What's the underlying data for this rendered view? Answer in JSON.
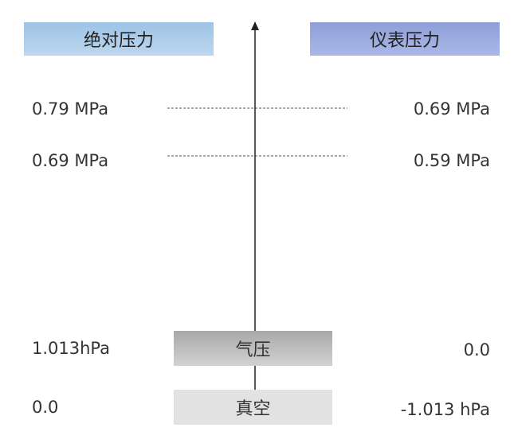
{
  "headers": {
    "absolute": "绝对压力",
    "gauge": "仪表压力"
  },
  "rows": [
    {
      "absolute": "0.79 MPa",
      "gauge": "0.69 MPa"
    },
    {
      "absolute": "0.69 MPa",
      "gauge": "0.59 MPa"
    },
    {
      "absolute": "1.013hPa",
      "gauge": "0.0"
    },
    {
      "absolute": "0.0",
      "gauge": "-1.013 hPa"
    }
  ],
  "boxes": {
    "atmospheric": "气压",
    "vacuum": "真空"
  }
}
